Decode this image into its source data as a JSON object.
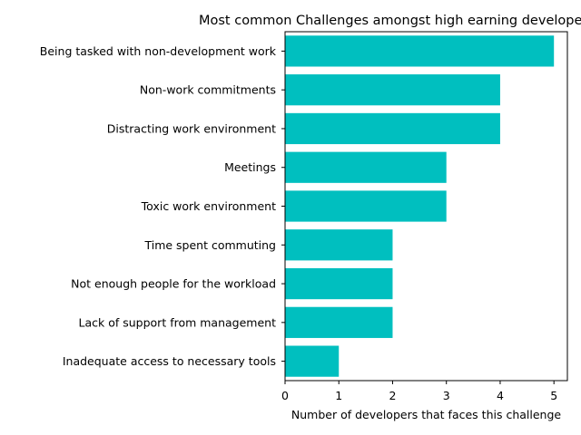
{
  "chart_data": {
    "type": "bar",
    "orientation": "horizontal",
    "title": "Most common Challenges amongst high earning developers",
    "xlabel": "Number of developers that faces this challenge",
    "ylabel": "",
    "categories": [
      "Being tasked with non-development work",
      "Non-work commitments",
      "Distracting work environment",
      "Meetings",
      "Toxic work environment",
      "Time spent commuting",
      "Not enough people for the workload",
      "Lack of support from management",
      "Inadequate access to necessary tools"
    ],
    "values": [
      5,
      4,
      4,
      3,
      3,
      2,
      2,
      2,
      1
    ],
    "xlim": [
      0,
      5.25
    ],
    "xticks": [
      "0",
      "1",
      "2",
      "3",
      "4",
      "5"
    ],
    "bar_color": "#00bfbf",
    "grid": false,
    "legend": "none"
  }
}
